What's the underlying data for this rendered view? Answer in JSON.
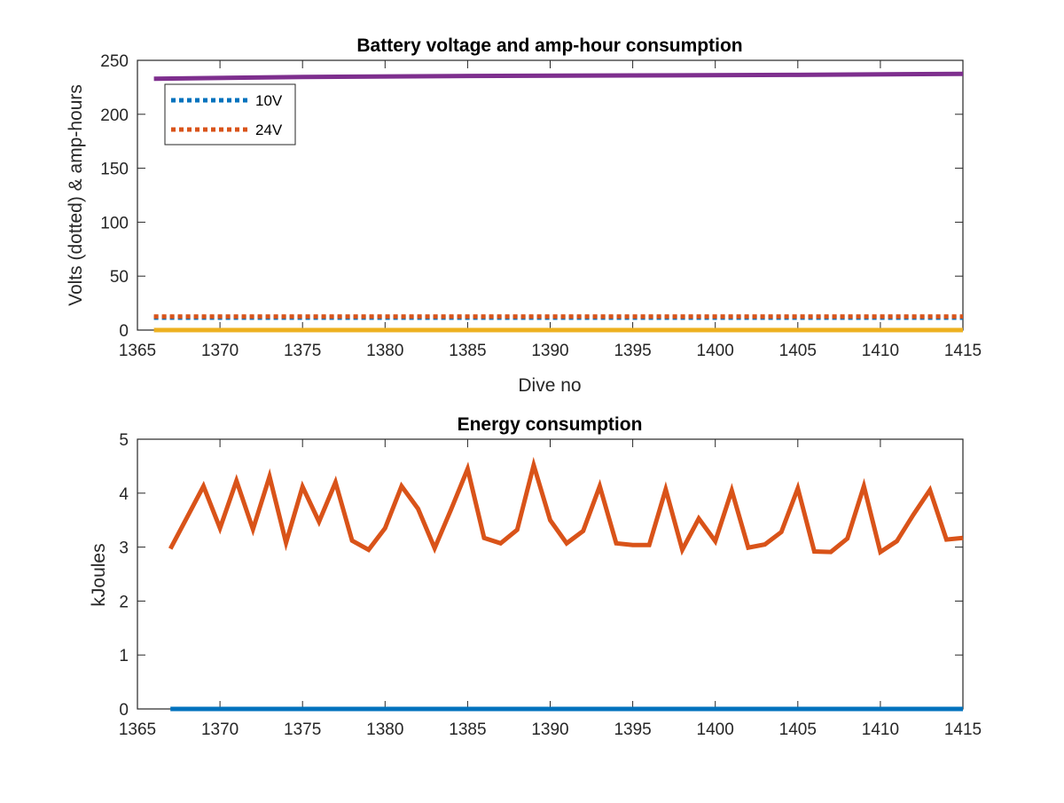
{
  "colors": {
    "blue": "#0072BD",
    "orange": "#D95319",
    "yellow": "#EDB120",
    "purple": "#7E2F8E",
    "axis": "#262626"
  },
  "chart_data": [
    {
      "type": "line",
      "title": "Battery voltage and amp-hour consumption",
      "xlabel": "Dive no",
      "ylabel": "Volts (dotted) & amp-hours",
      "xlim": [
        1365,
        1415
      ],
      "ylim": [
        0,
        250
      ],
      "xticks": [
        1365,
        1370,
        1375,
        1380,
        1385,
        1390,
        1395,
        1400,
        1405,
        1410,
        1415
      ],
      "yticks": [
        0,
        50,
        100,
        150,
        200,
        250
      ],
      "grid": false,
      "legend_position": "top-left",
      "series": [
        {
          "name": "10V",
          "style": "dotted",
          "color": "#0072BD",
          "x": [
            1366,
            1415
          ],
          "y": [
            11.5,
            11.5
          ]
        },
        {
          "name": "24V",
          "style": "dotted",
          "color": "#D95319",
          "x": [
            1366,
            1415
          ],
          "y": [
            12.5,
            12.5
          ]
        },
        {
          "style": "solid",
          "color": "#EDB120",
          "x": [
            1366,
            1415
          ],
          "y": [
            0,
            0
          ]
        },
        {
          "style": "solid",
          "color": "#7E2F8E",
          "x": [
            1366,
            1375,
            1385,
            1395,
            1405,
            1415
          ],
          "y": [
            233,
            234.5,
            235.5,
            236,
            236.5,
            237.5
          ]
        }
      ]
    },
    {
      "type": "line",
      "title": "Energy consumption",
      "xlabel": "",
      "ylabel": "kJoules",
      "xlim": [
        1365,
        1415
      ],
      "ylim": [
        0,
        5
      ],
      "xticks": [
        1365,
        1370,
        1375,
        1380,
        1385,
        1390,
        1395,
        1400,
        1405,
        1410,
        1415
      ],
      "yticks": [
        0,
        1,
        2,
        3,
        4,
        5
      ],
      "grid": false,
      "series": [
        {
          "style": "solid",
          "color": "#D95319",
          "x": [
            1367,
            1368,
            1369,
            1370,
            1371,
            1372,
            1373,
            1374,
            1375,
            1376,
            1377,
            1378,
            1379,
            1380,
            1381,
            1382,
            1383,
            1384,
            1385,
            1386,
            1387,
            1388,
            1389,
            1390,
            1391,
            1392,
            1393,
            1394,
            1395,
            1396,
            1397,
            1398,
            1399,
            1400,
            1401,
            1402,
            1403,
            1404,
            1405,
            1406,
            1407,
            1408,
            1409,
            1410,
            1411,
            1412,
            1413,
            1414,
            1415
          ],
          "y": [
            2.97,
            3.55,
            4.13,
            3.35,
            4.23,
            3.33,
            4.31,
            3.08,
            4.12,
            3.47,
            4.2,
            3.12,
            2.95,
            3.35,
            4.13,
            3.71,
            2.98,
            3.7,
            4.45,
            3.17,
            3.07,
            3.32,
            4.52,
            3.5,
            3.07,
            3.3,
            4.13,
            3.07,
            3.04,
            3.04,
            4.07,
            2.95,
            3.53,
            3.11,
            4.05,
            2.99,
            3.05,
            3.28,
            4.09,
            2.92,
            2.91,
            3.16,
            4.13,
            2.91,
            3.11,
            3.6,
            4.06,
            3.14,
            3.17
          ]
        },
        {
          "style": "solid",
          "color": "#0072BD",
          "x": [
            1367,
            1415
          ],
          "y": [
            0,
            0
          ]
        }
      ]
    }
  ]
}
